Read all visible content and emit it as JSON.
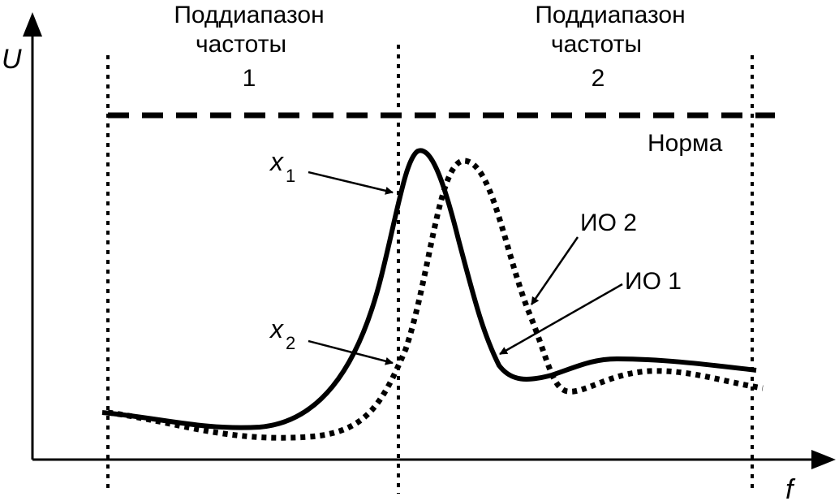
{
  "axes": {
    "y_label": "U",
    "x_label": "f"
  },
  "subranges": [
    {
      "line1": "Поддиапазон",
      "line2": "частоты",
      "number": "1"
    },
    {
      "line1": "Поддиапазон",
      "line2": "частоты",
      "number": "2"
    }
  ],
  "norm_label": "Норма",
  "points": {
    "x1": {
      "var": "x",
      "sub": "1"
    },
    "x2": {
      "var": "x",
      "sub": "2"
    }
  },
  "curves": {
    "io1": "ИО 1",
    "io2": "ИО 2"
  }
}
